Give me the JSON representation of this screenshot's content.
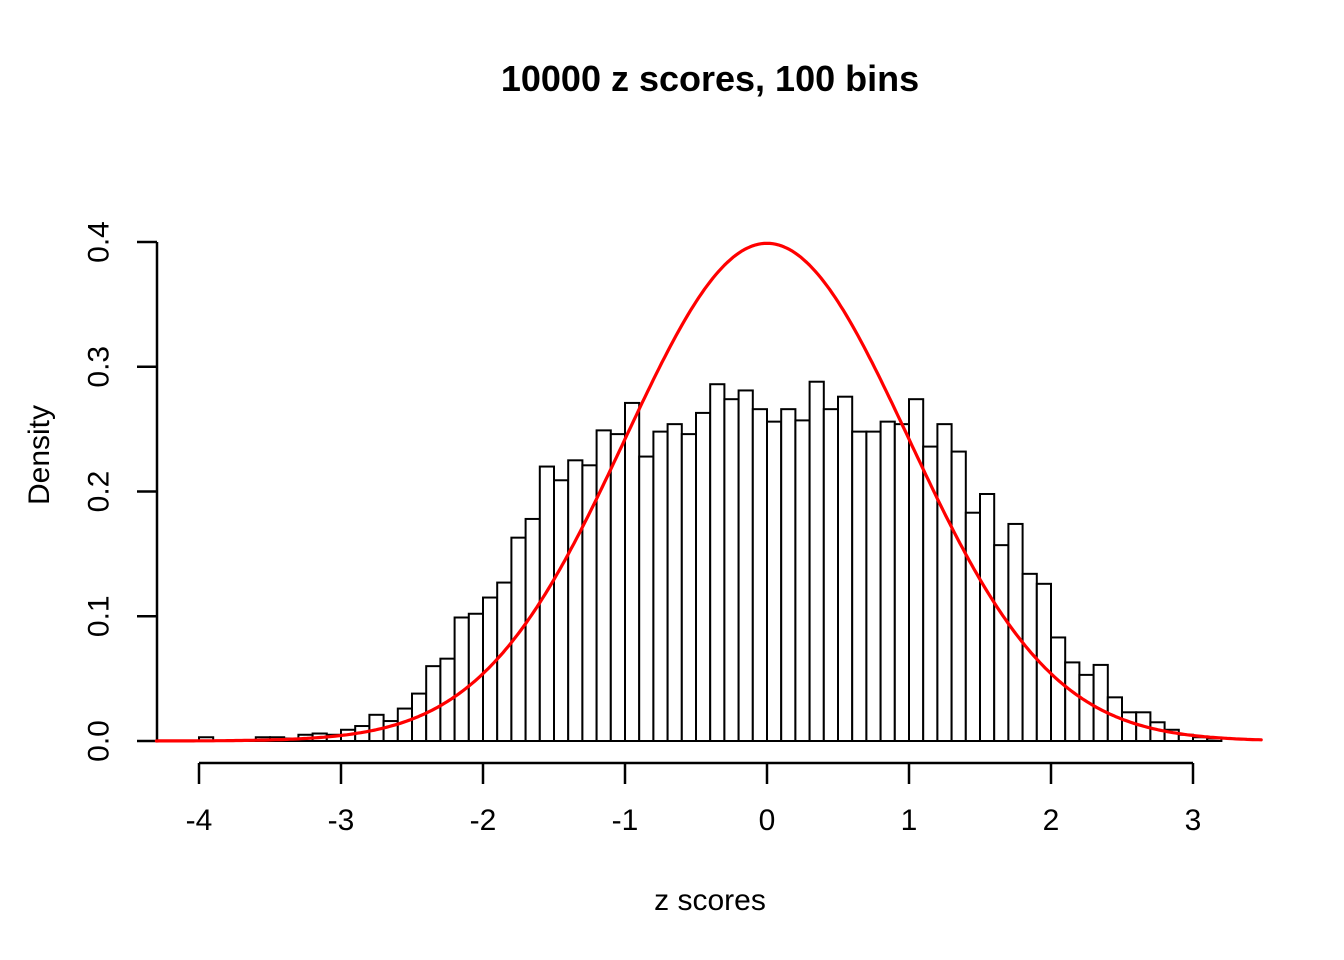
{
  "chart": {
    "title": "10000 z scores, 100 bins",
    "xlabel": "z scores",
    "ylabel": "Density"
  },
  "chart_data": {
    "type": "bar",
    "subtype": "histogram-with-normal-curve",
    "title": "10000 z scores, 100 bins",
    "xlabel": "z scores",
    "ylabel": "Density",
    "x_ticks": [
      -4,
      -3,
      -2,
      -1,
      0,
      1,
      2,
      3
    ],
    "x_tick_labels": [
      "-4",
      "-3",
      "-2",
      "-1",
      "0",
      "1",
      "2",
      "3"
    ],
    "y_ticks": [
      0,
      0.1,
      0.2,
      0.3,
      0.4
    ],
    "y_tick_labels": [
      "0.0",
      "0.1",
      "0.2",
      "0.3",
      "0.4"
    ],
    "xlim": [
      -4.3,
      3.49
    ],
    "ylim": [
      0,
      0.4
    ],
    "grid": false,
    "legend_position": "none",
    "bin_start": -4.0,
    "bin_width": 0.1,
    "bin_densities": [
      0.003,
      0,
      0,
      0,
      0.003,
      0.003,
      0.002,
      0.005,
      0.006,
      0.005,
      0.009,
      0.012,
      0.021,
      0.016,
      0.026,
      0.038,
      0.06,
      0.066,
      0.099,
      0.102,
      0.115,
      0.127,
      0.163,
      0.178,
      0.22,
      0.209,
      0.225,
      0.221,
      0.249,
      0.246,
      0.271,
      0.228,
      0.248,
      0.254,
      0.246,
      0.263,
      0.286,
      0.274,
      0.281,
      0.266,
      0.256,
      0.266,
      0.257,
      0.288,
      0.266,
      0.276,
      0.248,
      0.248,
      0.256,
      0.254,
      0.274,
      0.236,
      0.254,
      0.232,
      0.183,
      0.198,
      0.157,
      0.174,
      0.134,
      0.126,
      0.083,
      0.063,
      0.053,
      0.061,
      0.035,
      0.023,
      0.023,
      0.015,
      0.009,
      0.005,
      0.003,
      0.002
    ],
    "overlay_curve": {
      "name": "standard-normal-density",
      "mean": 0,
      "sd": 1,
      "peak_density": 0.3989,
      "color": "#ff0000",
      "linewidth": 3.2
    },
    "bar_fill": "#ffffff",
    "bar_stroke": "#000000",
    "axis_color": "#000000",
    "text_color": "#000000"
  }
}
